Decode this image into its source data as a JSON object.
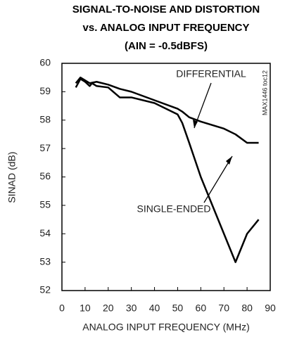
{
  "chart_data": {
    "type": "line",
    "title": [
      "SIGNAL-TO-NOISE AND DISTORTION",
      "vs. ANALOG INPUT FREQUENCY",
      "(AIN = -0.5dBFS)"
    ],
    "xlabel": "ANALOG INPUT FREQUENCY (MHz)",
    "ylabel": "SINAD (dB)",
    "side_note": "MAX1446 toc12",
    "annotations": [
      "DIFFERENTIAL",
      "SINGLE-ENDED"
    ],
    "series": [
      {
        "name": "DIFFERENTIAL",
        "color": "#000000",
        "x": [
          6,
          8,
          10,
          12,
          15,
          20,
          25,
          30,
          40,
          50,
          52,
          55,
          60,
          70,
          75,
          80,
          85
        ],
        "values": [
          59.3,
          59.5,
          59.4,
          59.3,
          59.35,
          59.25,
          59.1,
          59.0,
          58.7,
          58.4,
          58.3,
          58.1,
          57.95,
          57.7,
          57.5,
          57.2,
          57.2
        ]
      },
      {
        "name": "SINGLE-ENDED",
        "color": "#000000",
        "x": [
          6,
          8,
          10,
          12,
          13,
          15,
          20,
          25,
          30,
          40,
          50,
          52,
          55,
          60,
          65,
          70,
          75,
          80,
          85
        ],
        "values": [
          59.15,
          59.45,
          59.35,
          59.2,
          59.3,
          59.2,
          59.15,
          58.8,
          58.8,
          58.6,
          58.2,
          57.9,
          57.2,
          56.0,
          55.0,
          54.0,
          53.0,
          54.0,
          54.5
        ]
      }
    ],
    "xlim": [
      0,
      90
    ],
    "xticks": [
      0,
      10,
      20,
      30,
      40,
      50,
      60,
      70,
      80,
      90
    ],
    "ylim": [
      52,
      60
    ],
    "yticks": [
      52,
      53,
      54,
      55,
      56,
      57,
      58,
      59,
      60
    ],
    "grid": false
  }
}
